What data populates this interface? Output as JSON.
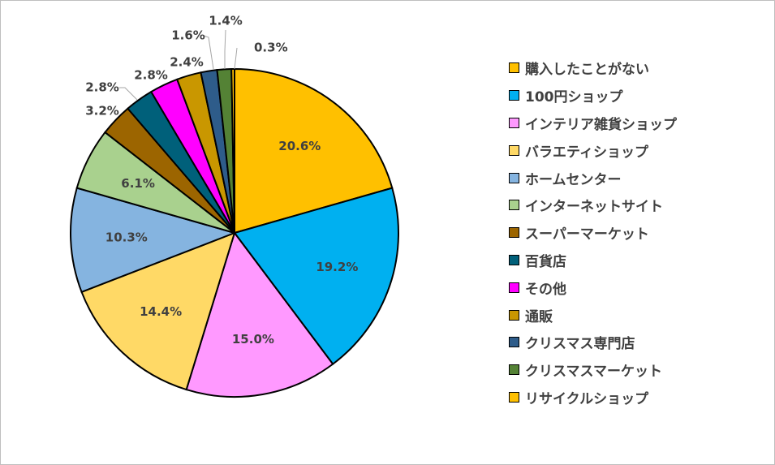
{
  "chart_data": {
    "type": "pie",
    "title": "",
    "start_angle_deg": 0,
    "direction": "clockwise",
    "legend_position": "right",
    "slices": [
      {
        "name": "購入したことがない",
        "value": 20.6,
        "label": "20.6%",
        "color": "#FFC000"
      },
      {
        "name": "100円ショップ",
        "value": 19.2,
        "label": "19.2%",
        "color": "#00B0F0"
      },
      {
        "name": "インテリア雑貨ショップ",
        "value": 15.0,
        "label": "15.0%",
        "color": "#FF99FF"
      },
      {
        "name": "バラエティショップ",
        "value": 14.4,
        "label": "14.4%",
        "color": "#FFD966"
      },
      {
        "name": "ホームセンター",
        "value": 10.3,
        "label": "10.3%",
        "color": "#85B4E0"
      },
      {
        "name": "インターネットサイト",
        "value": 6.1,
        "label": "6.1%",
        "color": "#A9D18E"
      },
      {
        "name": "スーパーマーケット",
        "value": 3.2,
        "label": "3.2%",
        "color": "#9C6500"
      },
      {
        "name": "百貨店",
        "value": 2.8,
        "label": "2.8%",
        "color": "#00607A"
      },
      {
        "name": "その他",
        "value": 2.8,
        "label": "2.8%",
        "color": "#FF00FF"
      },
      {
        "name": "通販",
        "value": 2.4,
        "label": "2.4%",
        "color": "#C99700"
      },
      {
        "name": "クリスマス専門店",
        "value": 1.6,
        "label": "1.6%",
        "color": "#2E5C8A"
      },
      {
        "name": "クリスマスマーケット",
        "value": 1.4,
        "label": "1.4%",
        "color": "#548235"
      },
      {
        "name": "リサイクルショップ",
        "value": 0.3,
        "label": "0.3%",
        "color": "#FFC000"
      }
    ]
  }
}
